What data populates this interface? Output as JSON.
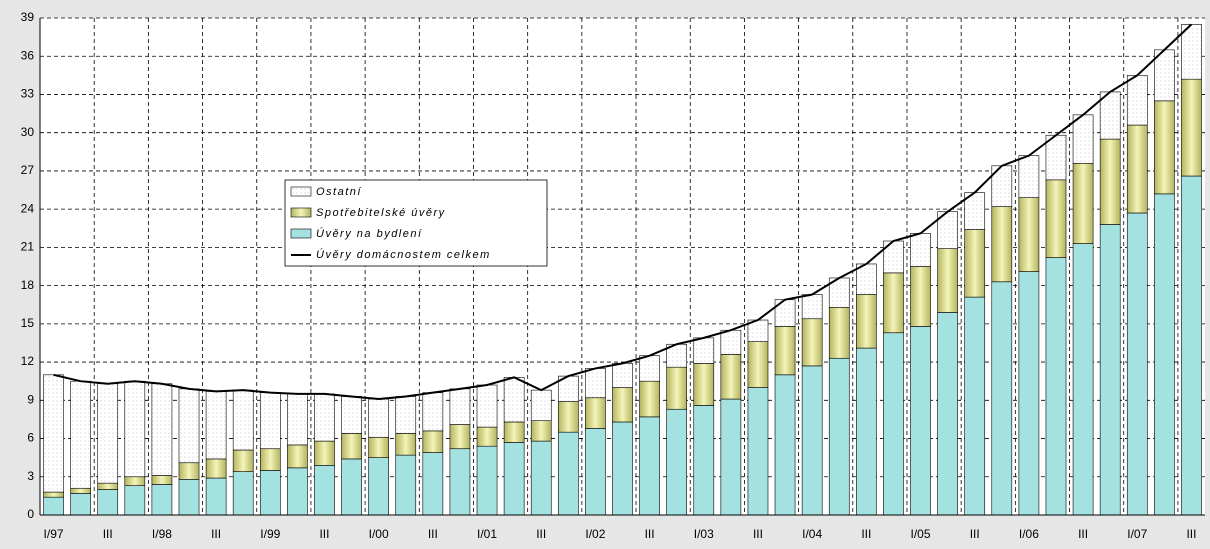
{
  "chart_data": {
    "type": "stacked-bar-line",
    "categories": [
      "I/97",
      null,
      "III",
      null,
      "I/98",
      null,
      "III",
      null,
      "I/99",
      null,
      "III",
      null,
      "I/00",
      null,
      "III",
      null,
      "I/01",
      null,
      "III",
      null,
      "I/02",
      null,
      "III",
      null,
      "I/03",
      null,
      "III",
      null,
      "I/04",
      null,
      "III",
      null,
      "I/05",
      null,
      "III",
      null,
      "I/06",
      null,
      "III",
      null,
      "I/07",
      null,
      "III"
    ],
    "series": [
      {
        "name": "Úvěry na bydlení",
        "kind": "bar",
        "color": "#a4e2e2",
        "values": [
          1.4,
          1.7,
          2.0,
          2.3,
          2.4,
          2.8,
          2.9,
          3.4,
          3.5,
          3.7,
          3.9,
          4.4,
          4.5,
          4.7,
          4.9,
          5.2,
          5.4,
          5.7,
          5.8,
          6.5,
          6.8,
          7.3,
          7.7,
          8.3,
          8.6,
          9.1,
          10.0,
          11.0,
          11.7,
          12.3,
          13.1,
          14.3,
          14.8,
          15.9,
          17.1,
          18.3,
          19.1,
          20.2,
          21.3,
          22.8,
          23.7,
          25.2,
          26.6
        ]
      },
      {
        "name": "Spotřebitelské úvěry",
        "kind": "bar",
        "color": "#d6d68a",
        "values": [
          0.4,
          0.4,
          0.5,
          0.7,
          0.7,
          1.3,
          1.5,
          1.7,
          1.7,
          1.8,
          1.9,
          2.0,
          1.6,
          1.7,
          1.7,
          1.9,
          1.5,
          1.6,
          1.6,
          2.4,
          2.4,
          2.7,
          2.8,
          3.3,
          3.3,
          3.5,
          3.6,
          3.8,
          3.7,
          4.0,
          4.2,
          4.7,
          4.7,
          5.0,
          5.3,
          5.9,
          5.8,
          6.1,
          6.3,
          6.7,
          6.9,
          7.3,
          7.6
        ]
      },
      {
        "name": "Ostatní",
        "kind": "bar",
        "color": "#ffffff",
        "values": [
          9.2,
          8.4,
          7.8,
          7.5,
          7.2,
          5.8,
          5.3,
          4.7,
          4.4,
          4.0,
          3.7,
          2.9,
          3.0,
          2.9,
          3.0,
          2.8,
          3.3,
          3.5,
          2.4,
          2.0,
          2.3,
          1.9,
          2.0,
          1.8,
          2.0,
          1.9,
          1.7,
          2.1,
          1.9,
          2.3,
          2.4,
          2.5,
          2.6,
          2.9,
          2.9,
          3.2,
          3.3,
          3.5,
          3.8,
          3.7,
          3.9,
          4.0,
          4.3
        ]
      },
      {
        "name": "Úvěry domácnostem celkem",
        "kind": "line",
        "color": "#000000",
        "values": [
          11.0,
          10.5,
          10.3,
          10.5,
          10.3,
          9.9,
          9.7,
          9.8,
          9.6,
          9.5,
          9.5,
          9.3,
          9.1,
          9.3,
          9.6,
          9.9,
          10.2,
          10.8,
          9.8,
          10.9,
          11.5,
          11.9,
          12.5,
          13.4,
          13.9,
          14.5,
          15.3,
          16.9,
          17.3,
          18.6,
          19.7,
          21.5,
          22.1,
          23.8,
          25.3,
          27.4,
          28.2,
          29.8,
          31.4,
          33.2,
          34.5,
          36.5,
          38.5
        ]
      }
    ],
    "ylim": [
      0,
      39
    ],
    "yticks": [
      0,
      3,
      6,
      9,
      12,
      15,
      18,
      21,
      24,
      27,
      30,
      33,
      36,
      39
    ],
    "grid": true
  }
}
